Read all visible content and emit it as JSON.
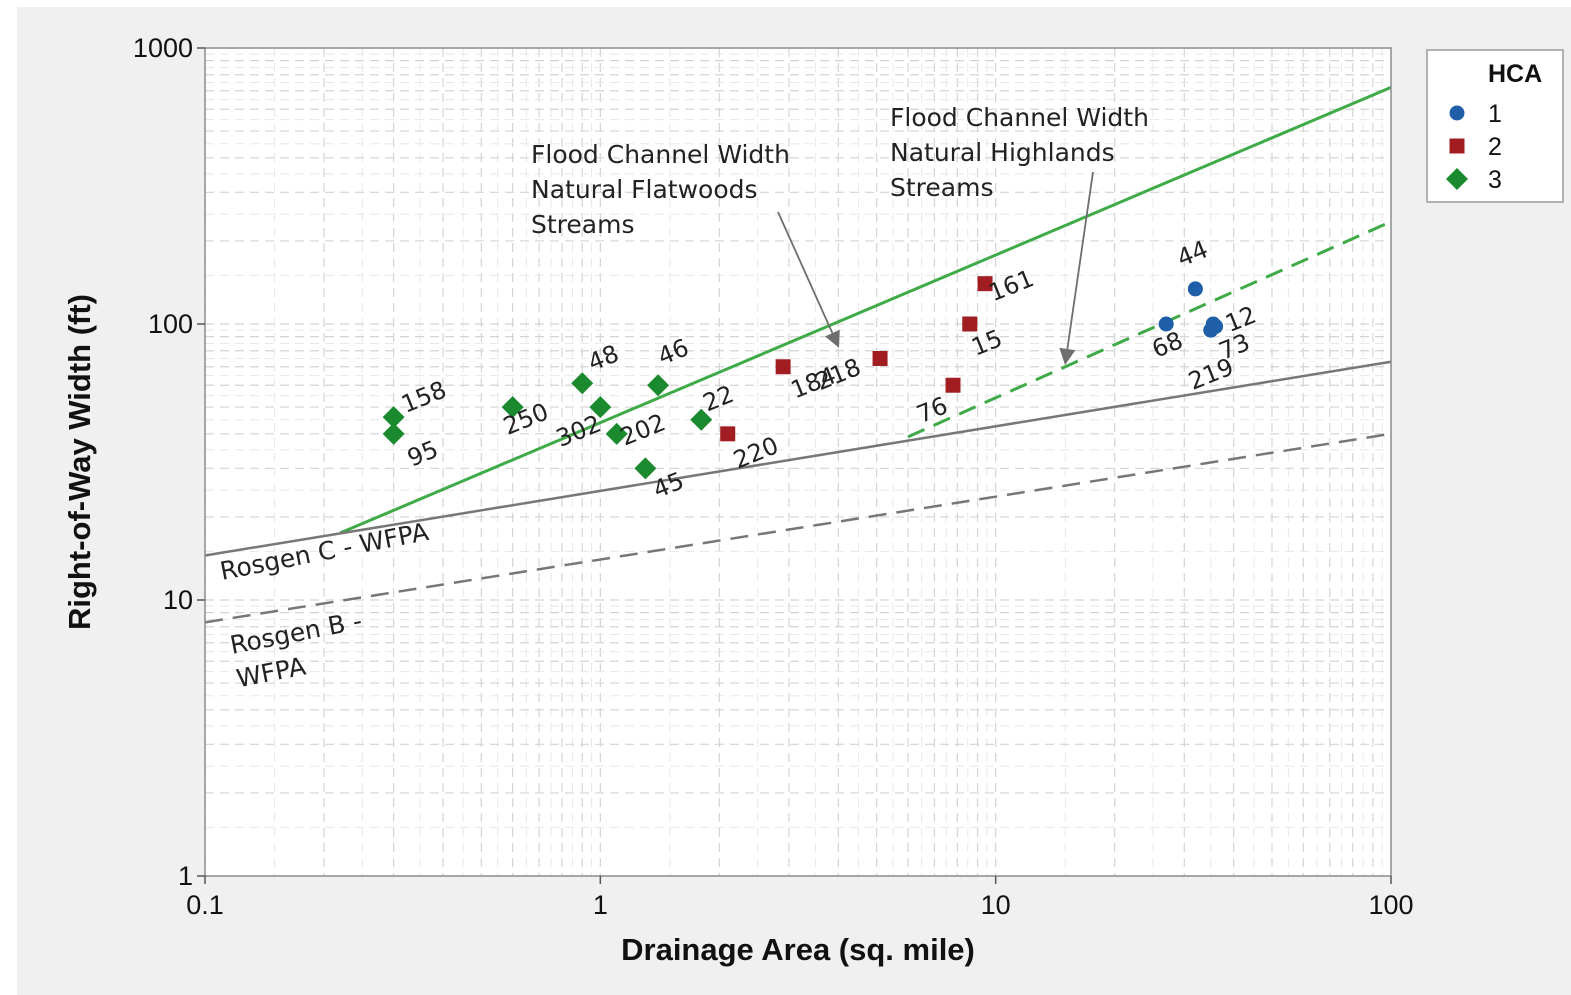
{
  "chart_data": {
    "type": "scatter",
    "xlabel": "Drainage Area (sq. mile)",
    "ylabel": "Right-of-Way Width  (ft)",
    "xscale": "log",
    "yscale": "log",
    "xlim": [
      0.1,
      100
    ],
    "ylim": [
      1,
      1000
    ],
    "xticks": [
      {
        "value": 0.1,
        "label": "0.1"
      },
      {
        "value": 1,
        "label": "1"
      },
      {
        "value": 10,
        "label": "10"
      },
      {
        "value": 100,
        "label": "100"
      }
    ],
    "yticks": [
      {
        "value": 1,
        "label": "1"
      },
      {
        "value": 10,
        "label": "10"
      },
      {
        "value": 100,
        "label": "100"
      },
      {
        "value": 1000,
        "label": "1000"
      }
    ],
    "grid": true,
    "legend": {
      "title": "HCA",
      "placement": "right",
      "entries": [
        {
          "label": "1",
          "marker": "circle",
          "color": "#1f5fa8"
        },
        {
          "label": "2",
          "marker": "square",
          "color": "#a11d21"
        },
        {
          "label": "3",
          "marker": "diamond",
          "color": "#1b8a2e"
        }
      ]
    },
    "series": [
      {
        "name": "1",
        "marker": "circle",
        "color": "#1f5fa8",
        "points": [
          {
            "x": 27,
            "y": 100,
            "label": "68"
          },
          {
            "x": 32,
            "y": 134,
            "label": "44"
          },
          {
            "x": 35,
            "y": 95,
            "label": "219"
          },
          {
            "x": 35.5,
            "y": 100,
            "label": "73"
          },
          {
            "x": 36,
            "y": 98,
            "label": "12"
          }
        ]
      },
      {
        "name": "2",
        "marker": "square",
        "color": "#a11d21",
        "points": [
          {
            "x": 2.1,
            "y": 40,
            "label": "220"
          },
          {
            "x": 2.9,
            "y": 70,
            "label": "184"
          },
          {
            "x": 5.1,
            "y": 75,
            "label": "218"
          },
          {
            "x": 7.8,
            "y": 60,
            "label": "76"
          },
          {
            "x": 8.6,
            "y": 100,
            "label": "15"
          },
          {
            "x": 9.4,
            "y": 140,
            "label": "161"
          }
        ]
      },
      {
        "name": "3",
        "marker": "diamond",
        "color": "#1b8a2e",
        "points": [
          {
            "x": 0.3,
            "y": 46,
            "label": "158"
          },
          {
            "x": 0.3,
            "y": 40,
            "label": "95"
          },
          {
            "x": 0.6,
            "y": 50,
            "label": "250"
          },
          {
            "x": 0.9,
            "y": 61,
            "label": "48"
          },
          {
            "x": 1.0,
            "y": 50,
            "label": "302"
          },
          {
            "x": 1.1,
            "y": 40,
            "label": "202"
          },
          {
            "x": 1.3,
            "y": 30,
            "label": "45"
          },
          {
            "x": 1.4,
            "y": 60,
            "label": "46"
          },
          {
            "x": 1.8,
            "y": 45,
            "label": "22"
          }
        ]
      }
    ],
    "reference_lines": [
      {
        "name": "Flood Channel Width Natural Flatwoods Streams",
        "style": "solid",
        "color": "#3faa48",
        "x": [
          0.22,
          100
        ],
        "y": [
          17.5,
          720
        ]
      },
      {
        "name": "Flood Channel Width Natural Highlands Streams",
        "style": "dashed",
        "color": "#3faa48",
        "x": [
          6,
          100
        ],
        "y": [
          39,
          235
        ]
      },
      {
        "name": "Rosgen C - WFPA",
        "style": "solid",
        "color": "#777777",
        "x": [
          0.1,
          100
        ],
        "y": [
          14.5,
          73
        ]
      },
      {
        "name": "Rosgen B - WFPA",
        "style": "dashed",
        "color": "#777777",
        "x": [
          0.1,
          100
        ],
        "y": [
          8.3,
          40
        ]
      }
    ],
    "annotations": [
      {
        "text": [
          "Flood Channel Width",
          "Natural Flatwoods",
          "Streams"
        ],
        "arrow_to": {
          "x": 4.0,
          "y": 83
        }
      },
      {
        "text": [
          "Flood Channel Width",
          "Natural Highlands",
          "Streams"
        ],
        "arrow_to": {
          "x": 15,
          "y": 72
        }
      },
      {
        "text": [
          "Rosgen C - WFPA"
        ]
      },
      {
        "text": [
          "Rosgen B -",
          "WFPA"
        ]
      }
    ]
  }
}
